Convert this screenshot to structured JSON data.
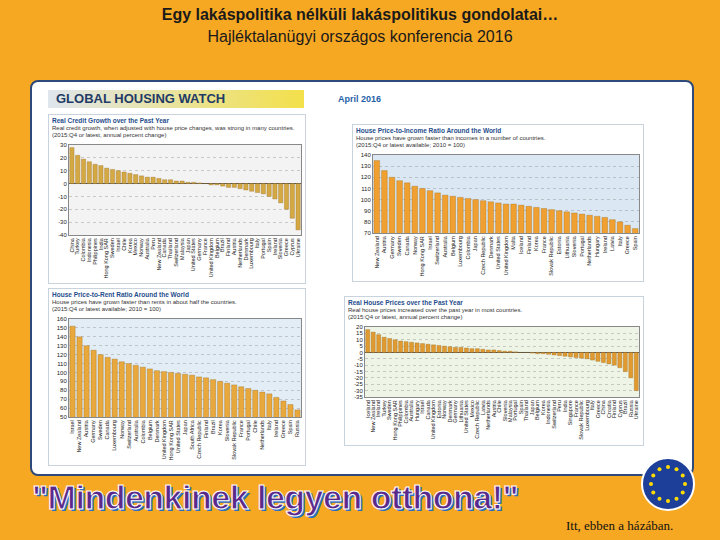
{
  "header": {
    "title": "Egy lakáspolitika nélküli lakáspolitikus gondolatai…",
    "subtitle": "Hajléktalanügyi országos konferencia 2016"
  },
  "banner": {
    "title": "GLOBAL HOUSING WATCH",
    "date": "April 2016"
  },
  "footer": {
    "slogan": "\"Mindenkinek legyen otthona!\"",
    "note": "Itt, ebben a házában."
  },
  "chart_data": [
    {
      "type": "bar",
      "title": "Real Credit Growth over the Past Year",
      "subtitle": "Real credit growth, when adjusted with house price changes, was strong in many countries.",
      "annotations": [
        "(2015:Q4 or latest, annual percent change)"
      ],
      "categories": [
        "China",
        "Turkey",
        "Colombia",
        "Indonesia",
        "Philippines",
        "India",
        "Hong Kong SAR",
        "Sweden",
        "Israel",
        "Chile",
        "Korea",
        "Mexico",
        "Norway",
        "Australia",
        "Peru",
        "New Zealand",
        "Canada",
        "Thailand",
        "Switzerland",
        "Malaysia",
        "Japan",
        "United States",
        "Germany",
        "France",
        "United Kingdom",
        "Belgium",
        "Brazil",
        "Finland",
        "Austria",
        "Netherlands",
        "Denmark",
        "Luxembourg",
        "Italy",
        "Portugal",
        "Spain",
        "Ireland",
        "Slovenia",
        "Greece",
        "Cyprus",
        "Ukraine"
      ],
      "values": [
        28,
        22,
        19,
        17,
        15,
        14,
        12,
        11,
        10,
        9,
        8,
        7,
        6,
        5,
        5,
        4,
        3,
        3,
        2,
        2,
        1,
        1,
        0.5,
        0,
        -1,
        -1,
        -2,
        -3,
        -3,
        -4,
        -5,
        -6,
        -7,
        -8,
        -10,
        -12,
        -15,
        -20,
        -27,
        -36
      ],
      "color": "#d4a843",
      "ylim": [
        -40,
        30
      ],
      "yticks": [
        -40,
        -30,
        -20,
        -10,
        0,
        10,
        20,
        30
      ],
      "grid": true
    },
    {
      "type": "bar",
      "title": "House Price-to-Income Ratio Around the World",
      "subtitle": "House prices have grown faster than incomes in a number of countries.",
      "annotations": [
        "(2015:Q4 or latest available; 2010 = 100)"
      ],
      "categories": [
        "New Zealand",
        "Austria",
        "Germany",
        "Sweden",
        "Canada",
        "Norway",
        "Hong Kong SAR",
        "Israel",
        "Switzerland",
        "Australia",
        "Belgium",
        "Luxembourg",
        "Colombia",
        "Japan",
        "Czech Republic",
        "Denmark",
        "United States",
        "United Kingdom",
        "Malta",
        "Iceland",
        "Finland",
        "Korea",
        "France",
        "Slovak Republic",
        "Estonia",
        "Lithuania",
        "Slovenia",
        "Portugal",
        "Netherlands",
        "Hungary",
        "Ireland",
        "Latvia",
        "Italy",
        "Greece",
        "Spain"
      ],
      "values": [
        135,
        126,
        120,
        117,
        115,
        112,
        110,
        108,
        106,
        104,
        103,
        102,
        101,
        100,
        99,
        98,
        97,
        96,
        96,
        95,
        94,
        93,
        92,
        91,
        90,
        89,
        88,
        87,
        86,
        85,
        84,
        82,
        80,
        77,
        74
      ],
      "color": "#f0a030",
      "ylim": [
        70,
        140
      ],
      "yticks": [
        70,
        80,
        90,
        100,
        110,
        120,
        130,
        140
      ],
      "grid": true
    },
    {
      "type": "bar",
      "title": "House Price-to-Rent Ratio Around the World",
      "subtitle": "House prices have grown faster than rents in about half the countries.",
      "annotations": [
        "(2015:Q4 or latest available; 2010 = 100)"
      ],
      "categories": [
        "Israel",
        "New Zealand",
        "Austria",
        "Germany",
        "Sweden",
        "Canada",
        "Luxembourg",
        "Norway",
        "Switzerland",
        "Australia",
        "Colombia",
        "Belgium",
        "Denmark",
        "United Kingdom",
        "Hong Kong SAR",
        "United States",
        "Japan",
        "South Africa",
        "Czech Republic",
        "Finland",
        "Brazil",
        "Korea",
        "Slovenia",
        "Slovak Republic",
        "France",
        "Portugal",
        "Chile",
        "Netherlands",
        "Italy",
        "Ireland",
        "Greece",
        "Spain",
        "Russia"
      ],
      "values": [
        152,
        140,
        130,
        125,
        120,
        117,
        115,
        112,
        110,
        108,
        106,
        104,
        102,
        101,
        100,
        99,
        98,
        97,
        95,
        94,
        92,
        90,
        88,
        86,
        84,
        82,
        80,
        78,
        76,
        72,
        68,
        64,
        58
      ],
      "color": "#e8a83c",
      "ylim": [
        50,
        160
      ],
      "yticks": [
        50,
        60,
        70,
        80,
        90,
        100,
        110,
        120,
        130,
        140,
        150,
        160
      ],
      "grid": true
    },
    {
      "type": "bar",
      "title": "Real House Prices over the Past Year",
      "subtitle": "Real house prices increased over the past year in most countries.",
      "annotations": [
        "(2015:Q4 or latest, annual percent change)"
      ],
      "categories": [
        "Iceland",
        "New Zealand",
        "Ireland",
        "Turkey",
        "Sweden",
        "Hong Kong SAR",
        "Philippines",
        "Colombia",
        "Australia",
        "Hungary",
        "Israel",
        "Canada",
        "United Kingdom",
        "Estonia",
        "Norway",
        "Denmark",
        "Germany",
        "Lithuania",
        "United States",
        "Mexico",
        "Czech Republic",
        "Latvia",
        "Netherlands",
        "Austria",
        "Chile",
        "Slovenia",
        "Malaysia",
        "Portugal",
        "Spain",
        "Thailand",
        "Japan",
        "Belgium",
        "Korea",
        "Indonesia",
        "Switzerland",
        "Peru",
        "India",
        "Singapore",
        "France",
        "Slovak Republic",
        "Luxembourg",
        "Italy",
        "Greece",
        "China",
        "Croatia",
        "Finland",
        "Cyprus",
        "Brazil",
        "Russia",
        "Ukraine"
      ],
      "values": [
        18,
        16,
        14,
        12,
        11,
        10,
        9,
        8.5,
        8,
        7.5,
        7,
        6.5,
        6,
        5.5,
        5,
        4.5,
        4,
        4,
        3.5,
        3,
        3,
        2.5,
        2,
        2,
        1.5,
        1,
        1,
        0.5,
        0,
        0,
        -0.5,
        -1,
        -1,
        -1.5,
        -2,
        -2.5,
        -3,
        -3.5,
        -4,
        -4.5,
        -5,
        -6,
        -7,
        -8,
        -9,
        -10,
        -12,
        -15,
        -20,
        -30
      ],
      "color": "#e09a30",
      "ylim": [
        -35,
        20
      ],
      "yticks": [
        -35,
        -30,
        -25,
        -20,
        -15,
        -10,
        -5,
        0,
        5,
        10,
        15,
        20
      ],
      "grid": true
    }
  ]
}
